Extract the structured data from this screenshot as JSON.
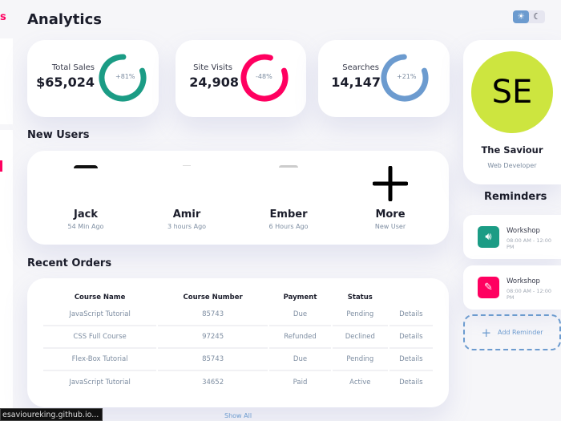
{
  "sidebar": {
    "partial_label": "s"
  },
  "header": {
    "title": "Analytics",
    "theme_toggle": {
      "active": "light"
    }
  },
  "stats": [
    {
      "label": "Total Sales",
      "value": "$65,024",
      "percent": "+81%",
      "fill": 0.81,
      "color": "#1b9c85"
    },
    {
      "label": "Site Visits",
      "value": "24,908",
      "percent": "-48%",
      "fill": 0.85,
      "color": "#ff0060"
    },
    {
      "label": "Searches",
      "value": "14,147",
      "percent": "+21%",
      "fill": 0.8,
      "color": "#6c9bcf"
    }
  ],
  "new_users": {
    "title": "New Users",
    "users": [
      {
        "name": "Jack",
        "time": "54 Min Ago"
      },
      {
        "name": "Amir",
        "time": "3 hours Ago"
      },
      {
        "name": "Ember",
        "time": "6 Hours Ago"
      },
      {
        "name": "More",
        "time": "New User"
      }
    ]
  },
  "orders": {
    "title": "Recent Orders",
    "columns": [
      "Course Name",
      "Course Number",
      "Payment",
      "Status",
      ""
    ],
    "rows": [
      [
        "JavaScript Tutorial",
        "85743",
        "Due",
        "Pending",
        "Details"
      ],
      [
        "CSS Full Course",
        "97245",
        "Refunded",
        "Declined",
        "Details"
      ],
      [
        "Flex-Box Tutorial",
        "85743",
        "Due",
        "Pending",
        "Details"
      ],
      [
        "JavaScript Tutorial",
        "34652",
        "Paid",
        "Active",
        "Details"
      ]
    ],
    "show_all": "Show All"
  },
  "profile": {
    "initials": "SE",
    "name": "The Saviour",
    "role": "Web Developer",
    "avatar_color": "#cde53f"
  },
  "reminders": {
    "title": "Reminders",
    "items": [
      {
        "title": "Workshop",
        "time": "08:00 AM - 12:00 PM",
        "icon": "volume-icon",
        "color": "#1b9c85"
      },
      {
        "title": "Workshop",
        "time": "08:00 AM - 12:00 PM",
        "icon": "pencil-icon",
        "color": "#ff0060"
      }
    ],
    "add_label": "Add Reminder"
  },
  "status_bar": {
    "url": "esavioureking.github.io..."
  }
}
